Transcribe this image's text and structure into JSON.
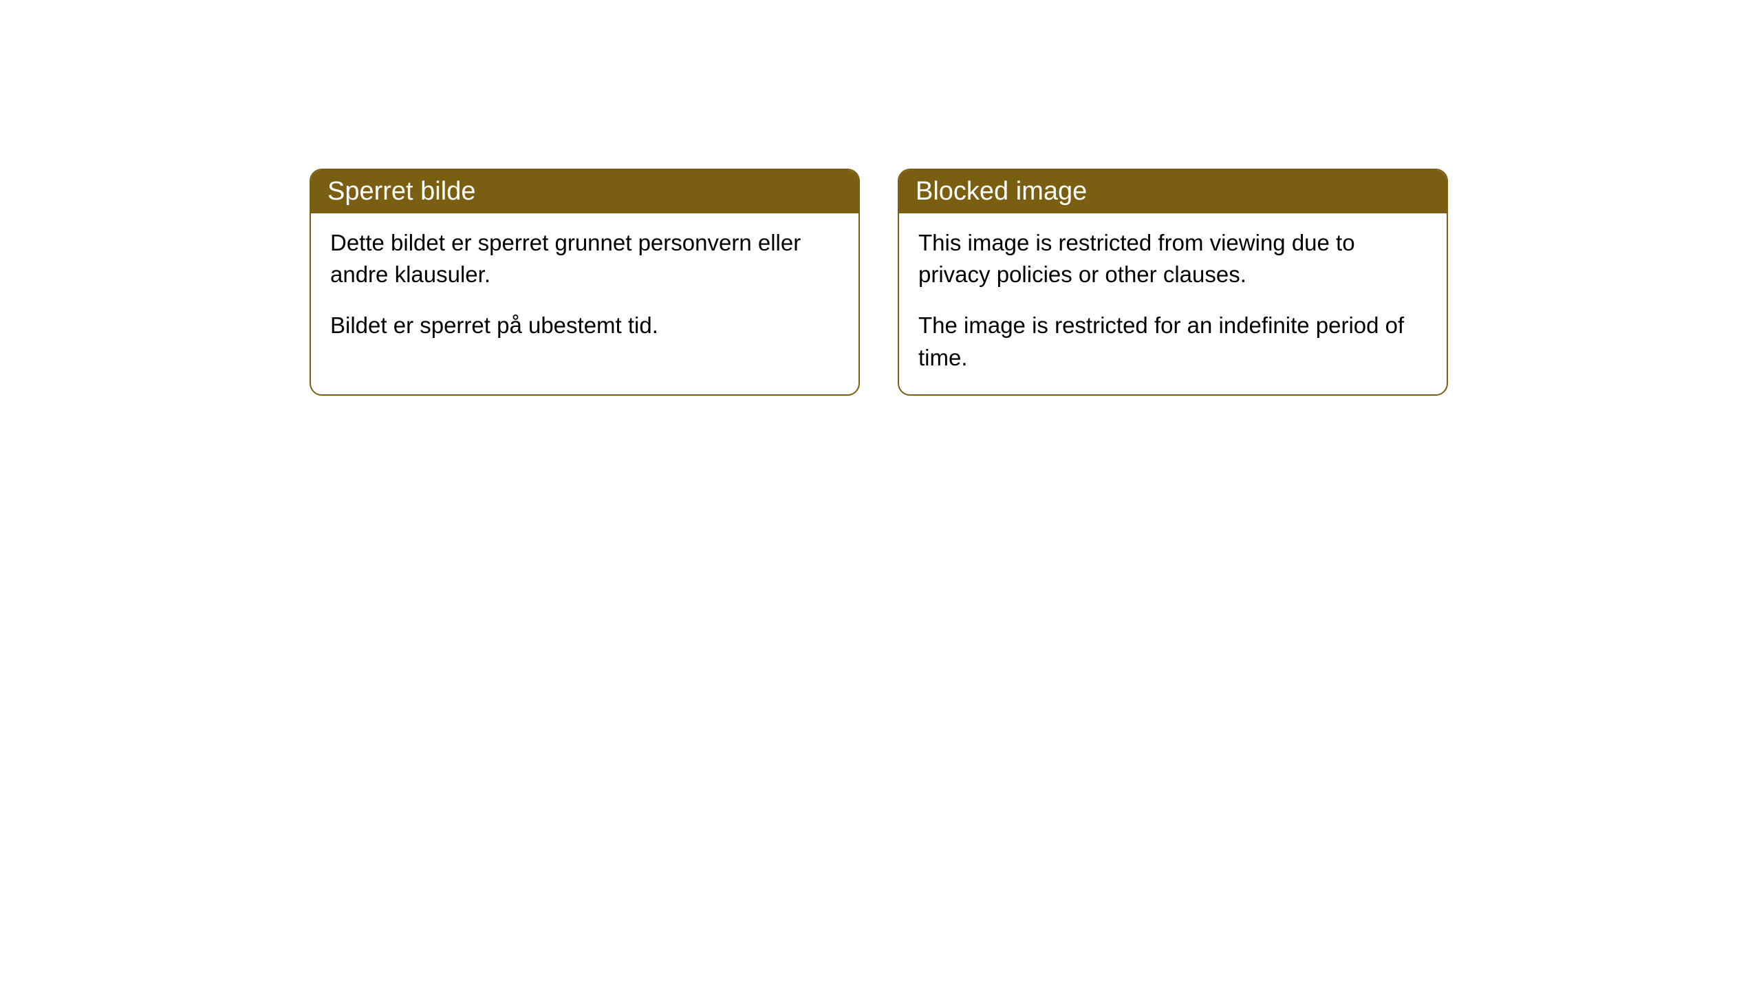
{
  "cards": [
    {
      "title": "Sperret bilde",
      "paragraph1": "Dette bildet er sperret grunnet personvern eller andre klausuler.",
      "paragraph2": "Bildet er sperret på ubestemt tid."
    },
    {
      "title": "Blocked image",
      "paragraph1": "This image is restricted from viewing due to privacy policies or other clauses.",
      "paragraph2": "The image is restricted for an indefinite period of time."
    }
  ],
  "styling": {
    "header_bg_color": "#7a5f12",
    "header_text_color": "#ffffff",
    "border_color": "#7a5f12",
    "body_text_color": "#000000",
    "card_bg_color": "#ffffff",
    "page_bg_color": "#ffffff",
    "border_radius": 18,
    "title_fontsize": 38,
    "body_fontsize": 33
  }
}
